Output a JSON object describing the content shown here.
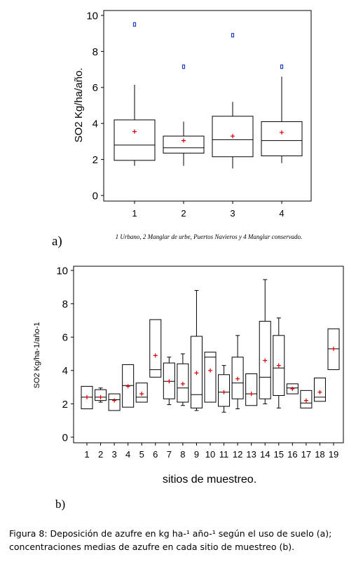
{
  "chart_data": [
    {
      "type": "boxplot",
      "panel_label": "a)",
      "ylabel": "SO2 Kg/ha/año.",
      "xlabel": "",
      "note": "1 Urbano, 2 Manglar de urbe, Puertos Navieros y 4 Manglar conservado.",
      "ylim": [
        0,
        10
      ],
      "yticks": [
        "0",
        "2",
        "4",
        "6",
        "8",
        "10"
      ],
      "categories": [
        "1",
        "2",
        "3",
        "4"
      ],
      "boxes": [
        {
          "min": 1.65,
          "q1": 1.95,
          "median": 2.8,
          "q3": 4.2,
          "max": 6.15,
          "mean": 3.55,
          "outliers": [
            9.5
          ]
        },
        {
          "min": 1.65,
          "q1": 2.35,
          "median": 2.65,
          "q3": 3.3,
          "max": 4.1,
          "mean": 3.05,
          "outliers": [
            7.15
          ]
        },
        {
          "min": 1.5,
          "q1": 2.15,
          "median": 3.1,
          "q3": 4.4,
          "max": 5.2,
          "mean": 3.3,
          "outliers": [
            8.9
          ]
        },
        {
          "min": 1.8,
          "q1": 2.2,
          "median": 3.05,
          "q3": 4.1,
          "max": 6.6,
          "mean": 3.5,
          "outliers": [
            7.15
          ]
        }
      ],
      "colors": {
        "mean": "#d40000",
        "outlier": "#1f3fbf"
      }
    },
    {
      "type": "boxplot",
      "panel_label": "b)",
      "ylabel": "SO2  Kg/ha-1/año-1",
      "xlabel": "sitios de muestreo.",
      "ylim": [
        0,
        10
      ],
      "yticks": [
        "0",
        "2",
        "4",
        "6",
        "8",
        "10"
      ],
      "categories": [
        "1",
        "2",
        "3",
        "4",
        "5",
        "6",
        "7",
        "8",
        "9",
        "10",
        "11",
        "12",
        "13",
        "14",
        "15",
        "16",
        "17",
        "18",
        "19"
      ],
      "boxes": [
        {
          "min": 1.7,
          "q1": 1.7,
          "median": 2.4,
          "q3": 3.05,
          "max": 3.05,
          "mean": 2.4
        },
        {
          "min": 2.1,
          "q1": 2.2,
          "median": 2.4,
          "q3": 2.85,
          "max": 2.95,
          "mean": 2.4
        },
        {
          "min": 1.6,
          "q1": 1.6,
          "median": 2.25,
          "q3": 2.6,
          "max": 2.6,
          "mean": 2.2
        },
        {
          "min": 1.8,
          "q1": 1.8,
          "median": 3.1,
          "q3": 4.35,
          "max": 4.35,
          "mean": 3.05
        },
        {
          "min": 2.1,
          "q1": 2.1,
          "median": 2.4,
          "q3": 3.25,
          "max": 3.25,
          "mean": 2.6
        },
        {
          "min": 3.6,
          "q1": 3.6,
          "median": 4.05,
          "q3": 7.05,
          "max": 7.05,
          "mean": 4.9
        },
        {
          "min": 1.95,
          "q1": 2.3,
          "median": 3.35,
          "q3": 4.45,
          "max": 4.8,
          "mean": 3.35
        },
        {
          "min": 1.9,
          "q1": 2.1,
          "median": 2.95,
          "q3": 4.4,
          "max": 5.0,
          "mean": 3.2
        },
        {
          "min": 1.6,
          "q1": 1.75,
          "median": 2.55,
          "q3": 6.05,
          "max": 8.8,
          "mean": 3.85
        },
        {
          "min": 2.1,
          "q1": 2.1,
          "median": 4.8,
          "q3": 5.1,
          "max": 5.1,
          "mean": 4.0
        },
        {
          "min": 1.5,
          "q1": 1.85,
          "median": 2.7,
          "q3": 3.75,
          "max": 4.3,
          "mean": 2.7
        },
        {
          "min": 1.7,
          "q1": 2.3,
          "median": 3.25,
          "q3": 4.8,
          "max": 6.1,
          "mean": 3.5
        },
        {
          "min": 1.9,
          "q1": 1.9,
          "median": 2.6,
          "q3": 3.8,
          "max": 3.8,
          "mean": 2.6
        },
        {
          "min": 2.0,
          "q1": 2.3,
          "median": 3.6,
          "q3": 6.95,
          "max": 9.45,
          "mean": 4.6
        },
        {
          "min": 1.75,
          "q1": 2.5,
          "median": 4.15,
          "q3": 6.1,
          "max": 7.15,
          "mean": 4.3
        },
        {
          "min": 2.6,
          "q1": 2.6,
          "median": 2.95,
          "q3": 3.2,
          "max": 3.2,
          "mean": 2.9
        },
        {
          "min": 1.75,
          "q1": 1.75,
          "median": 2.05,
          "q3": 2.8,
          "max": 2.8,
          "mean": 2.2
        },
        {
          "min": 2.15,
          "q1": 2.15,
          "median": 2.4,
          "q3": 3.55,
          "max": 3.55,
          "mean": 2.7
        },
        {
          "min": 4.05,
          "q1": 4.05,
          "median": 5.3,
          "q3": 6.5,
          "max": 6.5,
          "mean": 5.3
        }
      ],
      "colors": {
        "mean": "#d40000"
      }
    }
  ],
  "caption": {
    "line1": "Figura 8: Deposición de azufre en kg ha-¹ año-¹ según el uso de suelo (a);",
    "line2": "concentraciones medias de azufre en cada sitio de muestreo (b)."
  }
}
